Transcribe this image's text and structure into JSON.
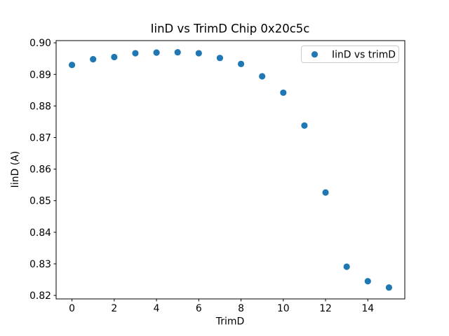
{
  "chart_data": {
    "type": "scatter",
    "title": "IinD vs TrimD Chip 0x20c5c",
    "xlabel": "TrimD",
    "ylabel": "IinD (A)",
    "series": [
      {
        "name": "IinD vs trimD",
        "x": [
          0,
          1,
          2,
          3,
          4,
          5,
          6,
          7,
          8,
          9,
          10,
          11,
          12,
          13,
          14,
          15
        ],
        "y": [
          0.893,
          0.8948,
          0.8955,
          0.8967,
          0.8969,
          0.897,
          0.8967,
          0.8952,
          0.8933,
          0.8894,
          0.8842,
          0.8738,
          0.8526,
          0.8291,
          0.8245,
          0.8225
        ]
      }
    ],
    "xlim": [
      -0.75,
      15.75
    ],
    "ylim": [
      0.8189,
      0.9007
    ],
    "xticks": [
      0,
      2,
      4,
      6,
      8,
      10,
      12,
      14
    ],
    "yticks": [
      0.82,
      0.83,
      0.84,
      0.85,
      0.86,
      0.87,
      0.88,
      0.89,
      0.9
    ],
    "ytick_decimals": 2,
    "grid": false,
    "legend_position": "upper right",
    "marker_color": "#1f77b4",
    "legend_border_color": "#cccccc",
    "spine_color": "#000000"
  }
}
